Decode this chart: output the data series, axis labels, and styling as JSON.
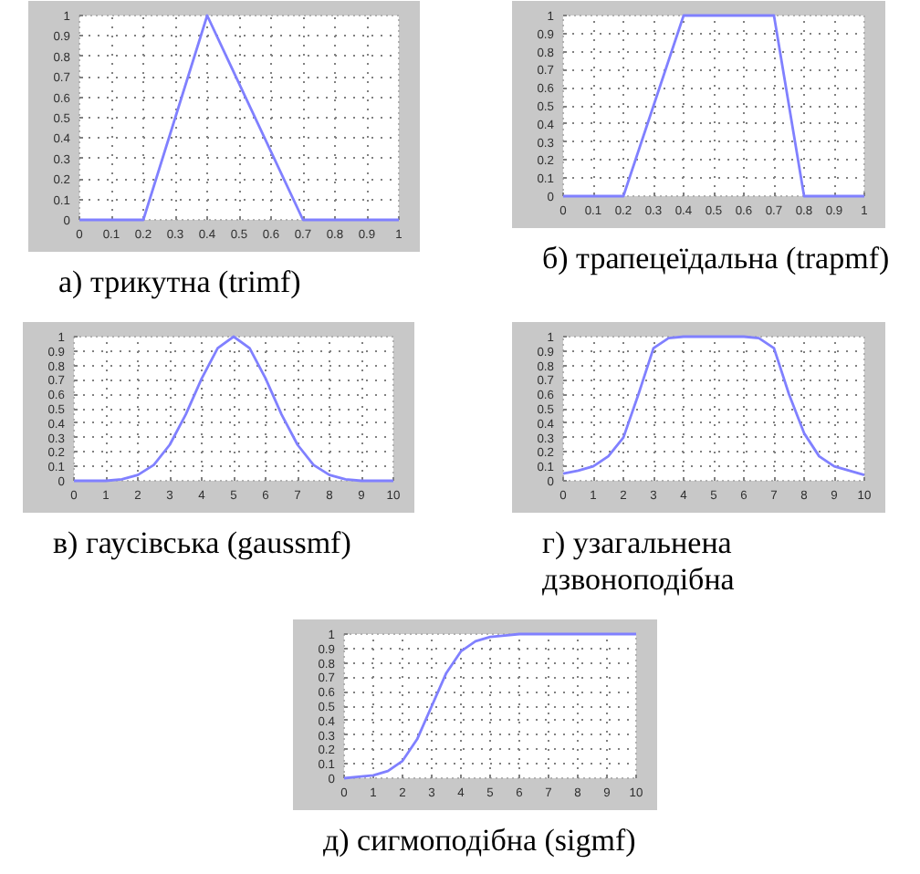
{
  "chart_data": [
    {
      "type": "line",
      "title": "а) трикутна (trimf)",
      "x": [
        0,
        0.2,
        0.4,
        0.7,
        1
      ],
      "series": [
        {
          "color": "#8080ff",
          "values": [
            0,
            0,
            1,
            0,
            0
          ]
        }
      ],
      "xlim": [
        0,
        1
      ],
      "ylim": [
        0,
        1
      ],
      "xticks": [
        0,
        0.1,
        0.2,
        0.3,
        0.4,
        0.5,
        0.6,
        0.7,
        0.8,
        0.9,
        1
      ],
      "yticks": [
        0,
        0.1,
        0.2,
        0.3,
        0.4,
        0.5,
        0.6,
        0.7,
        0.8,
        0.9,
        1
      ],
      "grid": true
    },
    {
      "type": "line",
      "title": "б) трапецеїдальна (trapmf)",
      "x": [
        0,
        0.2,
        0.4,
        0.7,
        0.8,
        1
      ],
      "series": [
        {
          "color": "#8080ff",
          "values": [
            0,
            0,
            1,
            1,
            0,
            0
          ]
        }
      ],
      "xlim": [
        0,
        1
      ],
      "ylim": [
        0,
        1
      ],
      "xticks": [
        0,
        0.1,
        0.2,
        0.3,
        0.4,
        0.5,
        0.6,
        0.7,
        0.8,
        0.9,
        1
      ],
      "yticks": [
        0,
        0.1,
        0.2,
        0.3,
        0.4,
        0.5,
        0.6,
        0.7,
        0.8,
        0.9,
        1
      ],
      "grid": true
    },
    {
      "type": "line",
      "title": "в) гаусівська (gaussmf)",
      "x": [
        0,
        0.5,
        1,
        1.5,
        2,
        2.5,
        3,
        3.5,
        4,
        4.5,
        5,
        5.5,
        6,
        6.5,
        7,
        7.5,
        8,
        8.5,
        9,
        9.5,
        10
      ],
      "series": [
        {
          "color": "#8080ff",
          "values": [
            0,
            0,
            0,
            0.01,
            0.04,
            0.11,
            0.25,
            0.46,
            0.71,
            0.92,
            1,
            0.92,
            0.71,
            0.46,
            0.25,
            0.11,
            0.04,
            0.01,
            0,
            0,
            0
          ]
        }
      ],
      "xlim": [
        0,
        10
      ],
      "ylim": [
        0,
        1
      ],
      "xticks": [
        0,
        1,
        2,
        3,
        4,
        5,
        6,
        7,
        8,
        9,
        10
      ],
      "yticks": [
        0,
        0.1,
        0.2,
        0.3,
        0.4,
        0.5,
        0.6,
        0.7,
        0.8,
        0.9,
        1
      ],
      "grid": true
    },
    {
      "type": "line",
      "title": "г) узагальнена дзвоноподібна",
      "x": [
        0,
        0.5,
        1,
        1.5,
        2,
        2.5,
        3,
        3.5,
        4,
        4.5,
        5,
        5.5,
        6,
        6.5,
        7,
        7.5,
        8,
        8.5,
        9,
        9.5,
        10
      ],
      "series": [
        {
          "color": "#8080ff",
          "values": [
            0.05,
            0.07,
            0.1,
            0.17,
            0.3,
            0.6,
            0.92,
            0.99,
            1,
            1,
            1,
            1,
            1,
            0.99,
            0.92,
            0.6,
            0.33,
            0.17,
            0.1,
            0.07,
            0.04
          ]
        }
      ],
      "xlim": [
        0,
        10
      ],
      "ylim": [
        0,
        1
      ],
      "xticks": [
        0,
        1,
        2,
        3,
        4,
        5,
        6,
        7,
        8,
        9,
        10
      ],
      "yticks": [
        0,
        0.1,
        0.2,
        0.3,
        0.4,
        0.5,
        0.6,
        0.7,
        0.8,
        0.9,
        1
      ],
      "grid": true
    },
    {
      "type": "line",
      "title": "д) сигмоподібна (sigmf)",
      "x": [
        0,
        0.5,
        1,
        1.5,
        2,
        2.5,
        3,
        3.5,
        4,
        4.5,
        5,
        5.5,
        6,
        7,
        8,
        9,
        10
      ],
      "series": [
        {
          "color": "#8080ff",
          "values": [
            0,
            0.01,
            0.02,
            0.05,
            0.12,
            0.27,
            0.5,
            0.73,
            0.88,
            0.95,
            0.98,
            0.99,
            1,
            1,
            1,
            1,
            1
          ]
        }
      ],
      "xlim": [
        0,
        10
      ],
      "ylim": [
        0,
        1
      ],
      "xticks": [
        0,
        1,
        2,
        3,
        4,
        5,
        6,
        7,
        8,
        9,
        10
      ],
      "yticks": [
        0,
        0.1,
        0.2,
        0.3,
        0.4,
        0.5,
        0.6,
        0.7,
        0.8,
        0.9,
        1
      ],
      "grid": true
    }
  ]
}
